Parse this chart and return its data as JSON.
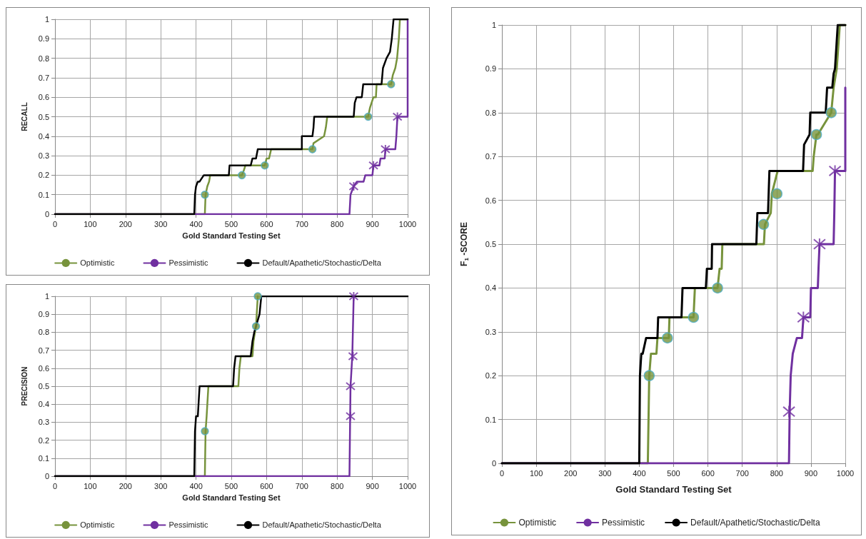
{
  "chart_data": [
    {
      "type": "line",
      "xlabel": "Gold Standard Testing Set",
      "ylabel": "RECALL",
      "xlim": [
        0,
        1000
      ],
      "xticks": [
        0,
        100,
        200,
        300,
        400,
        500,
        600,
        700,
        800,
        900,
        1000
      ],
      "ylim": [
        0,
        1
      ],
      "yticks": [
        0,
        0.1,
        0.2,
        0.3,
        0.4,
        0.5,
        0.6,
        0.7,
        0.8,
        0.9,
        1
      ],
      "grid": true,
      "legend": "bottom",
      "line_style": "solid",
      "series": [
        {
          "name": "Optimistic",
          "color": "#77933c",
          "marker": "none",
          "x": [
            0,
            425,
            427,
            432,
            437,
            440,
            530,
            535,
            540,
            595,
            600,
            607,
            613,
            730,
            733,
            763,
            768,
            772,
            888,
            893,
            903,
            910,
            912,
            953,
            958,
            965,
            970,
            975,
            978,
            1000
          ],
          "values": [
            0,
            0,
            0.1,
            0.143,
            0.167,
            0.2,
            0.2,
            0.222,
            0.25,
            0.25,
            0.286,
            0.286,
            0.333,
            0.333,
            0.364,
            0.4,
            0.444,
            0.5,
            0.5,
            0.545,
            0.6,
            0.6,
            0.667,
            0.667,
            0.714,
            0.75,
            0.8,
            0.9,
            1,
            1
          ]
        },
        {
          "name": "Pessimistic",
          "color": "#7030a0",
          "marker": "none",
          "x": [
            0,
            835,
            838,
            847,
            856,
            875,
            880,
            900,
            903,
            920,
            923,
            935,
            937,
            965,
            968,
            971,
            1000,
            1000
          ],
          "values": [
            0,
            0,
            0.1,
            0.143,
            0.167,
            0.167,
            0.2,
            0.2,
            0.25,
            0.25,
            0.286,
            0.286,
            0.333,
            0.333,
            0.4,
            0.5,
            0.5,
            1
          ]
        },
        {
          "name": "Default/Apathetic/Stochastic/Delta",
          "color": "#000000",
          "marker": "none",
          "x": [
            0,
            395,
            397,
            400,
            405,
            410,
            422,
            493,
            495,
            555,
            560,
            570,
            575,
            700,
            700,
            730,
            733,
            735,
            847,
            850,
            855,
            870,
            874,
            926,
            930,
            940,
            950,
            955,
            960,
            1000
          ],
          "values": [
            0,
            0,
            0.1,
            0.143,
            0.167,
            0.167,
            0.2,
            0.2,
            0.25,
            0.25,
            0.286,
            0.286,
            0.333,
            0.333,
            0.4,
            0.4,
            0.444,
            0.5,
            0.5,
            0.571,
            0.6,
            0.6,
            0.667,
            0.667,
            0.75,
            0.8,
            0.833,
            0.9,
            1,
            1
          ]
        },
        {
          "type": "scatter",
          "color": "#77933c",
          "marker": "circle",
          "x": [
            425,
            530,
            595,
            730,
            888,
            953
          ],
          "values": [
            0.1,
            0.2,
            0.25,
            0.333,
            0.5,
            0.667
          ]
        },
        {
          "type": "scatter",
          "color": "#7030a0",
          "marker": "cross",
          "x": [
            847,
            903,
            937,
            971
          ],
          "values": [
            0.143,
            0.25,
            0.333,
            0.5
          ]
        }
      ]
    },
    {
      "type": "line",
      "xlabel": "Gold Standard Testing Set",
      "ylabel": "PRECISION",
      "xlim": [
        0,
        1000
      ],
      "xticks": [
        0,
        100,
        200,
        300,
        400,
        500,
        600,
        700,
        800,
        900,
        1000
      ],
      "ylim": [
        0,
        1
      ],
      "yticks": [
        0,
        0.1,
        0.2,
        0.3,
        0.4,
        0.5,
        0.6,
        0.7,
        0.8,
        0.9,
        1
      ],
      "grid": true,
      "legend": "bottom",
      "line_style": "solid",
      "series": [
        {
          "name": "Optimistic",
          "color": "#77933c",
          "marker": "none",
          "x": [
            0,
            425,
            427,
            430,
            435,
            520,
            523,
            527,
            560,
            563,
            567,
            570,
            575
          ],
          "values": [
            0,
            0,
            0.25,
            0.333,
            0.5,
            0.5,
            0.6,
            0.667,
            0.667,
            0.75,
            0.8,
            0.833,
            1
          ]
        },
        {
          "name": "Pessimistic",
          "color": "#7030a0",
          "marker": "none",
          "x": [
            0,
            835,
            838,
            843,
            847
          ],
          "values": [
            0,
            0,
            0.5,
            0.667,
            1
          ]
        },
        {
          "name": "Default/Apathetic/Stochastic/Delta",
          "color": "#000000",
          "marker": "none",
          "x": [
            0,
            395,
            397,
            400,
            405,
            410,
            505,
            508,
            512,
            555,
            560,
            565,
            570,
            580,
            585,
            1000
          ],
          "values": [
            0,
            0,
            0.25,
            0.333,
            0.333,
            0.5,
            0.5,
            0.6,
            0.667,
            0.667,
            0.75,
            0.8,
            0.833,
            0.9,
            1,
            1
          ]
        },
        {
          "type": "scatter",
          "color": "#77933c",
          "marker": "circle",
          "x": [
            425,
            570,
            575
          ],
          "values": [
            0.25,
            0.833,
            1
          ]
        },
        {
          "type": "scatter",
          "color": "#7030a0",
          "marker": "cross",
          "x": [
            838,
            838,
            845,
            847
          ],
          "values": [
            0.333,
            0.5,
            0.667,
            1
          ]
        }
      ]
    },
    {
      "type": "line",
      "xlabel": "Gold Standard Testing Set",
      "ylabel": "F$_{1}$ -SCORE",
      "xlim": [
        0,
        1000
      ],
      "xticks": [
        0,
        100,
        200,
        300,
        400,
        500,
        600,
        700,
        800,
        900,
        1000
      ],
      "ylim": [
        0,
        1
      ],
      "yticks": [
        0,
        0.1,
        0.2,
        0.3,
        0.4,
        0.5,
        0.6,
        0.7,
        0.8,
        0.9,
        1
      ],
      "grid": true,
      "legend": "bottom",
      "line_style": "solid",
      "series": [
        {
          "name": "Optimistic",
          "color": "#77933c",
          "marker": "none",
          "x": [
            0,
            425,
            429,
            434,
            450,
            453,
            486,
            488,
            558,
            562,
            628,
            634,
            640,
            642,
            763,
            766,
            783,
            786,
            803,
            905,
            908,
            916,
            920,
            959,
            966,
            975,
            984,
            1000
          ],
          "values": [
            0,
            0,
            0.2,
            0.25,
            0.25,
            0.286,
            0.286,
            0.333,
            0.333,
            0.4,
            0.4,
            0.444,
            0.444,
            0.5,
            0.5,
            0.545,
            0.571,
            0.615,
            0.667,
            0.667,
            0.7,
            0.75,
            0.75,
            0.8,
            0.857,
            0.9,
            1,
            1
          ]
        },
        {
          "name": "Pessimistic",
          "color": "#7030a0",
          "marker": "none",
          "x": [
            0,
            836,
            838,
            841,
            847,
            859,
            874,
            878,
            898,
            900,
            920,
            922,
            925,
            966,
            968,
            970,
            1000,
            1000
          ],
          "values": [
            0,
            0,
            0.118,
            0.2,
            0.25,
            0.286,
            0.286,
            0.333,
            0.333,
            0.4,
            0.4,
            0.444,
            0.5,
            0.5,
            0.571,
            0.667,
            0.667,
            0.857
          ]
        },
        {
          "name": "Default/Apathetic/Stochastic/Delta",
          "color": "#000000",
          "marker": "none",
          "x": [
            0,
            400,
            402,
            406,
            410,
            420,
            453,
            455,
            523,
            526,
            594,
            597,
            611,
            612,
            741,
            744,
            775,
            779,
            877,
            880,
            896,
            898,
            943,
            947,
            962,
            966,
            970,
            974,
            978,
            1000
          ],
          "values": [
            0,
            0,
            0.2,
            0.25,
            0.25,
            0.286,
            0.286,
            0.333,
            0.333,
            0.4,
            0.4,
            0.444,
            0.444,
            0.5,
            0.5,
            0.571,
            0.571,
            0.667,
            0.667,
            0.727,
            0.75,
            0.8,
            0.8,
            0.857,
            0.857,
            0.889,
            0.9,
            0.95,
            1,
            1
          ]
        },
        {
          "type": "scatter",
          "color": "#77933c",
          "marker": "circle",
          "x": [
            429,
            482,
            558,
            628,
            762,
            801,
            916,
            959
          ],
          "values": [
            0.2,
            0.286,
            0.333,
            0.4,
            0.545,
            0.615,
            0.75,
            0.8
          ]
        },
        {
          "type": "scatter",
          "color": "#7030a0",
          "marker": "cross",
          "x": [
            836,
            878,
            925,
            970
          ],
          "values": [
            0.118,
            0.333,
            0.5,
            0.667
          ]
        }
      ]
    }
  ]
}
